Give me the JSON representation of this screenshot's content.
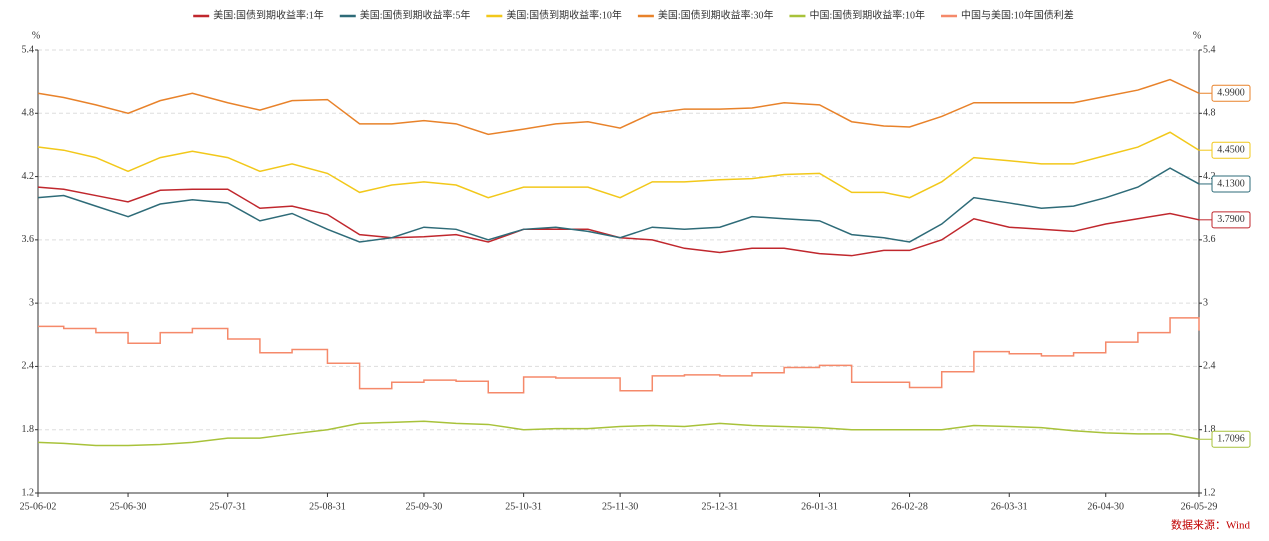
{
  "chart_data": {
    "type": "line",
    "y_unit": "%",
    "y2_unit": "%",
    "source": "数据来源：Wind",
    "x": [
      "25-06-02",
      "25-06-10",
      "25-06-20",
      "25-06-30",
      "25-07-10",
      "25-07-20",
      "25-07-31",
      "25-08-10",
      "25-08-20",
      "25-08-31",
      "25-09-10",
      "25-09-20",
      "25-09-30",
      "25-10-10",
      "25-10-20",
      "25-10-31",
      "25-11-10",
      "25-11-20",
      "25-11-30",
      "25-12-10",
      "25-12-20",
      "25-12-31",
      "26-01-10",
      "26-01-20",
      "26-01-31",
      "26-02-10",
      "26-02-20",
      "26-02-28",
      "26-03-10",
      "26-03-20",
      "26-03-31",
      "26-04-10",
      "26-04-20",
      "26-04-30",
      "26-05-10",
      "26-05-20",
      "26-05-29"
    ],
    "xticks": [
      "25-06-02",
      "25-06-30",
      "25-07-31",
      "25-08-31",
      "25-09-30",
      "25-10-31",
      "25-11-30",
      "25-12-31",
      "26-01-31",
      "26-02-28",
      "26-03-31",
      "26-04-30",
      "26-05-29"
    ],
    "ylim": [
      1.2,
      5.4
    ],
    "yticks": [
      1.2,
      1.8,
      2.4,
      3,
      3.6,
      4.2,
      4.8,
      5.4
    ],
    "y2lim": [
      1.2,
      5.4
    ],
    "y2ticks": [
      1.2,
      1.8,
      2.4,
      3,
      3.6,
      4.2,
      4.8,
      5.4
    ],
    "grid": true,
    "series": [
      {
        "name": "美国:国债到期收益率:1年",
        "color": "#c0272d",
        "step": false,
        "values": [
          4.1,
          4.08,
          4.02,
          3.96,
          4.07,
          4.08,
          4.08,
          3.9,
          3.92,
          3.84,
          3.65,
          3.62,
          3.63,
          3.65,
          3.58,
          3.7,
          3.7,
          3.7,
          3.62,
          3.6,
          3.52,
          3.48,
          3.52,
          3.52,
          3.47,
          3.45,
          3.5,
          3.5,
          3.6,
          3.8,
          3.72,
          3.7,
          3.68,
          3.75,
          3.8,
          3.85,
          3.79
        ],
        "value_labels": [
          null,
          null,
          null,
          null,
          null,
          null,
          null,
          null,
          null,
          null,
          null,
          null,
          null,
          null,
          null,
          null,
          null,
          null,
          null,
          null,
          null,
          null,
          null,
          null,
          null,
          null,
          null,
          null,
          null,
          null,
          null,
          null,
          null,
          null,
          null,
          null,
          "3.7900"
        ]
      },
      {
        "name": "美国:国债到期收益率:5年",
        "color": "#2e6b78",
        "step": false,
        "values": [
          4.0,
          4.02,
          3.92,
          3.82,
          3.94,
          3.98,
          3.95,
          3.78,
          3.85,
          3.7,
          3.58,
          3.62,
          3.72,
          3.7,
          3.6,
          3.7,
          3.72,
          3.68,
          3.62,
          3.72,
          3.7,
          3.72,
          3.82,
          3.8,
          3.78,
          3.65,
          3.62,
          3.58,
          3.75,
          4.0,
          3.95,
          3.9,
          3.92,
          4.0,
          4.1,
          4.28,
          4.13
        ],
        "value_labels": [
          null,
          null,
          null,
          null,
          null,
          null,
          null,
          null,
          null,
          null,
          null,
          null,
          null,
          null,
          null,
          null,
          null,
          null,
          null,
          null,
          null,
          null,
          null,
          null,
          null,
          null,
          null,
          null,
          null,
          null,
          null,
          null,
          null,
          null,
          null,
          null,
          "4.1300"
        ]
      },
      {
        "name": "美国:国债到期收益率:10年",
        "color": "#f2c81a",
        "step": false,
        "values": [
          4.48,
          4.45,
          4.38,
          4.25,
          4.38,
          4.44,
          4.38,
          4.25,
          4.32,
          4.23,
          4.05,
          4.12,
          4.15,
          4.12,
          4.0,
          4.1,
          4.1,
          4.1,
          4.0,
          4.15,
          4.15,
          4.17,
          4.18,
          4.22,
          4.23,
          4.05,
          4.05,
          4.0,
          4.15,
          4.38,
          4.35,
          4.32,
          4.32,
          4.4,
          4.48,
          4.62,
          4.45
        ],
        "value_labels": [
          null,
          null,
          null,
          null,
          null,
          null,
          null,
          null,
          null,
          null,
          null,
          null,
          null,
          null,
          null,
          null,
          null,
          null,
          null,
          null,
          null,
          null,
          null,
          null,
          null,
          null,
          null,
          null,
          null,
          null,
          null,
          null,
          null,
          null,
          null,
          null,
          "4.4500"
        ]
      },
      {
        "name": "美国:国债到期收益率:30年",
        "color": "#e8822a",
        "step": false,
        "values": [
          4.99,
          4.95,
          4.88,
          4.8,
          4.92,
          4.99,
          4.9,
          4.83,
          4.92,
          4.93,
          4.7,
          4.7,
          4.73,
          4.7,
          4.6,
          4.65,
          4.7,
          4.72,
          4.66,
          4.8,
          4.84,
          4.84,
          4.85,
          4.9,
          4.88,
          4.72,
          4.68,
          4.67,
          4.77,
          4.9,
          4.9,
          4.9,
          4.9,
          4.96,
          5.02,
          5.12,
          4.99
        ],
        "value_labels": [
          null,
          null,
          null,
          null,
          null,
          null,
          null,
          null,
          null,
          null,
          null,
          null,
          null,
          null,
          null,
          null,
          null,
          null,
          null,
          null,
          null,
          null,
          null,
          null,
          null,
          null,
          null,
          null,
          null,
          null,
          null,
          null,
          null,
          null,
          null,
          null,
          "4.9900"
        ]
      },
      {
        "name": "中国:国债到期收益率:10年",
        "color": "#a8c23a",
        "step": false,
        "values": [
          1.68,
          1.67,
          1.65,
          1.65,
          1.66,
          1.68,
          1.72,
          1.72,
          1.76,
          1.8,
          1.86,
          1.87,
          1.88,
          1.86,
          1.85,
          1.8,
          1.81,
          1.81,
          1.83,
          1.84,
          1.83,
          1.86,
          1.84,
          1.83,
          1.82,
          1.8,
          1.8,
          1.8,
          1.8,
          1.84,
          1.83,
          1.82,
          1.79,
          1.77,
          1.76,
          1.76,
          1.7096
        ],
        "value_labels": [
          null,
          null,
          null,
          null,
          null,
          null,
          null,
          null,
          null,
          null,
          null,
          null,
          null,
          null,
          null,
          null,
          null,
          null,
          null,
          null,
          null,
          null,
          null,
          null,
          null,
          null,
          null,
          null,
          null,
          null,
          null,
          null,
          null,
          null,
          null,
          null,
          "1.7096"
        ]
      },
      {
        "name": "中国与美国:10年国债利差",
        "color": "#f5896a",
        "step": true,
        "values": [
          2.78,
          2.76,
          2.72,
          2.62,
          2.72,
          2.76,
          2.66,
          2.53,
          2.56,
          2.43,
          2.19,
          2.25,
          2.27,
          2.26,
          2.15,
          2.3,
          2.29,
          2.29,
          2.17,
          2.31,
          2.32,
          2.31,
          2.34,
          2.39,
          2.41,
          2.25,
          2.25,
          2.2,
          2.35,
          2.54,
          2.52,
          2.5,
          2.53,
          2.63,
          2.72,
          2.86,
          2.74
        ]
      }
    ]
  }
}
